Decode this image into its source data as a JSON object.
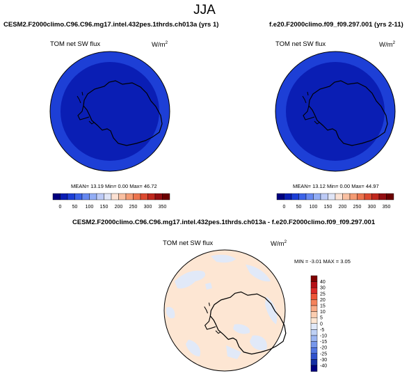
{
  "title": "JJA",
  "panels": [
    {
      "case": "CESM2.F2000climo.C96.C96.mg17.intel.432pes.1thrds.ch013a (yrs 1)",
      "variable": "TOM net SW flux",
      "units_base": "W/m",
      "units_exp": "2",
      "stats": "MEAN=  13.19  Min=   0.00  Max=  46.72"
    },
    {
      "case": "f.e20.F2000climo.f09_f09.297.001 (yrs 2-11)",
      "variable": "TOM net SW flux",
      "units_base": "W/m",
      "units_exp": "2",
      "stats": "MEAN=  13.12  Min=   0.00  Max=  44.97"
    },
    {
      "case": "CESM2.F2000climo.C96.C96.mg17.intel.432pes.1thrds.ch013a - f.e20.F2000climo.f09_f09.297.001",
      "variable": "TOM net SW flux",
      "units_base": "W/m",
      "units_exp": "2",
      "stats": "MIN = -3.01 MAX =  3.05"
    }
  ],
  "colorbars": {
    "absolute": {
      "labels": [
        "0",
        "50",
        "100",
        "150",
        "200",
        "250",
        "300",
        "350"
      ],
      "colors": [
        "#00007f",
        "#0a1eb4",
        "#1d3fd6",
        "#3c63e8",
        "#6688f0",
        "#92adf5",
        "#bccaf6",
        "#e0e5f7",
        "#fbe1d3",
        "#f9c0a2",
        "#f49b74",
        "#ec744e",
        "#dc4a30",
        "#c0281e",
        "#930e12",
        "#6b0000"
      ]
    },
    "difference": {
      "labels": [
        "40",
        "30",
        "25",
        "20",
        "15",
        "10",
        "5",
        "0",
        "-5",
        "-10",
        "-15",
        "-20",
        "-25",
        "-30",
        "-40"
      ],
      "colors": [
        "#7f0000",
        "#b51016",
        "#db2a28",
        "#ee5538",
        "#f5825b",
        "#f9ab87",
        "#fbcdb0",
        "#fde6d3",
        "#e1e9f8",
        "#bfd1f5",
        "#9bb5f1",
        "#7797eb",
        "#5376e2",
        "#3152cc",
        "#1630a4",
        "#000080"
      ]
    }
  },
  "chart_data": [
    {
      "type": "heatmap",
      "projection": "south-polar-stereographic",
      "title": "TOM net SW flux",
      "case": "CESM2.F2000climo.C96.C96.mg17.intel.432pes.1thrds.ch013a (yrs 1)",
      "season": "JJA",
      "units": "W/m2",
      "mean": 13.19,
      "min": 0.0,
      "max": 46.72,
      "levels": [
        0,
        50,
        100,
        150,
        200,
        250,
        300,
        350
      ],
      "fill_colors": {
        "interior": "#0a1eb4",
        "outer_ring": "#1d3fd6"
      }
    },
    {
      "type": "heatmap",
      "projection": "south-polar-stereographic",
      "title": "TOM net SW flux",
      "case": "f.e20.F2000climo.f09_f09.297.001 (yrs 2-11)",
      "season": "JJA",
      "units": "W/m2",
      "mean": 13.12,
      "min": 0.0,
      "max": 44.97,
      "levels": [
        0,
        50,
        100,
        150,
        200,
        250,
        300,
        350
      ],
      "fill_colors": {
        "interior": "#0a1eb4",
        "outer_ring": "#1d3fd6"
      }
    },
    {
      "type": "heatmap",
      "projection": "south-polar-stereographic",
      "title": "TOM net SW flux",
      "case": "CESM2.F2000climo.C96.C96.mg17.intel.432pes.1thrds.ch013a - f.e20.F2000climo.f09_f09.297.001",
      "season": "JJA",
      "units": "W/m2",
      "min": -3.01,
      "max": 3.05,
      "levels": [
        -40,
        -30,
        -25,
        -20,
        -15,
        -10,
        -5,
        0,
        5,
        10,
        15,
        20,
        25,
        30,
        40
      ],
      "fill_colors": {
        "dominant": "#fde6d3",
        "secondary": "#e1e9f8"
      }
    }
  ]
}
